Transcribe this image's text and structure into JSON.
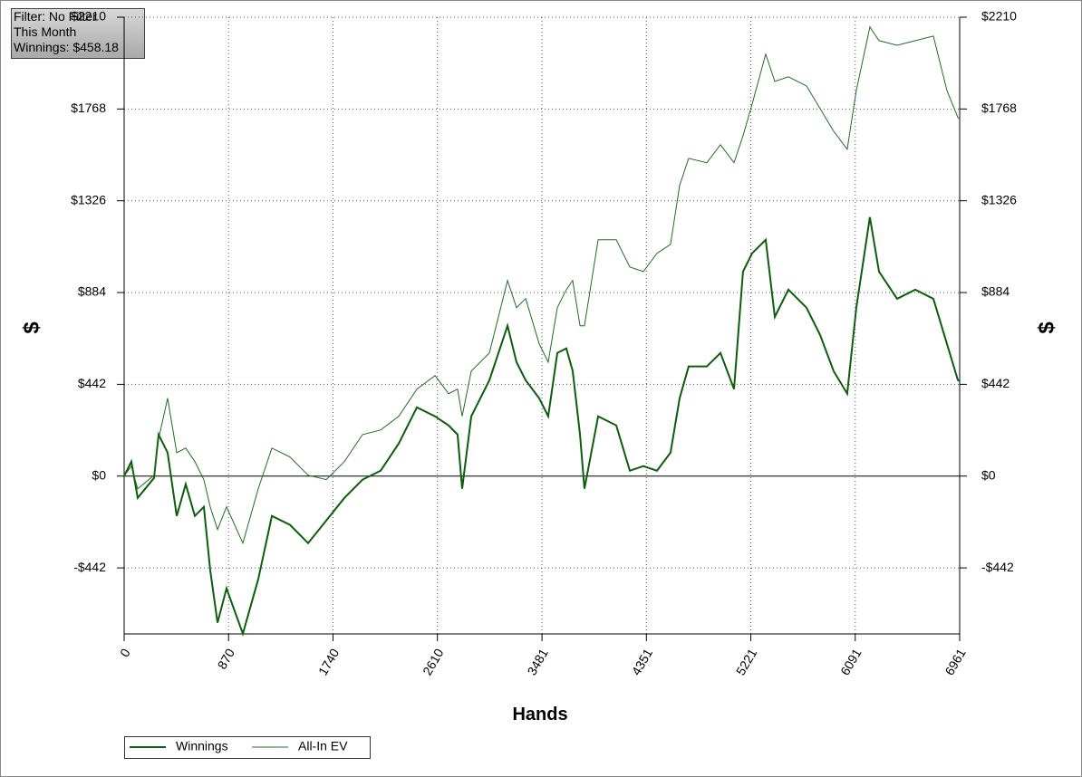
{
  "chart_data": {
    "type": "line",
    "info": [
      "Filter: No Filter",
      "This Month",
      "Winnings: $458.18"
    ],
    "x_label": "Hands",
    "y_label": "$",
    "y2_label": "$",
    "x": [
      0,
      60,
      113,
      249,
      287,
      362,
      438,
      513,
      589,
      664,
      717,
      778,
      853,
      989,
      1117,
      1231,
      1382,
      1533,
      1684,
      1835,
      1986,
      2137,
      2288,
      2439,
      2590,
      2703,
      2778,
      2816,
      2892,
      3043,
      3194,
      3269,
      3345,
      3458,
      3533,
      3609,
      3684,
      3737,
      3798,
      3835,
      3949,
      4100,
      4213,
      4326,
      4439,
      4552,
      4628,
      4703,
      4854,
      4968,
      5081,
      5156,
      5232,
      5345,
      5421,
      5534,
      5685,
      5798,
      5911,
      6024,
      6100,
      6213,
      6289,
      6440,
      6591,
      6742,
      6855,
      6946,
      6961
    ],
    "series": [
      {
        "name": "Winnings",
        "color": "#0b5e0b",
        "values": [
          0,
          70,
          -105,
          -9,
          200,
          113,
          -192,
          -39,
          -192,
          -148,
          -453,
          -706,
          -541,
          -759,
          -497,
          -192,
          -235,
          -323,
          -214,
          -105,
          -17,
          26,
          157,
          331,
          288,
          244,
          200,
          -61,
          288,
          462,
          724,
          549,
          462,
          375,
          288,
          593,
          615,
          506,
          200,
          -61,
          288,
          244,
          26,
          48,
          26,
          113,
          375,
          528,
          528,
          593,
          419,
          985,
          1073,
          1138,
          767,
          898,
          811,
          680,
          506,
          397,
          811,
          1247,
          985,
          854,
          898,
          854,
          637,
          462,
          458.18
        ]
      },
      {
        "name": "All-In EV",
        "color": "#1f6e1f",
        "values": [
          0,
          48,
          -61,
          4,
          179,
          375,
          113,
          135,
          70,
          -17,
          -148,
          -257,
          -148,
          -323,
          -61,
          135,
          92,
          4,
          -17,
          70,
          200,
          222,
          288,
          419,
          484,
          397,
          419,
          288,
          506,
          593,
          942,
          811,
          855,
          637,
          549,
          811,
          898,
          942,
          724,
          724,
          1138,
          1138,
          1007,
          985,
          1073,
          1116,
          1400,
          1530,
          1509,
          1596,
          1509,
          1639,
          1792,
          2032,
          1901,
          1923,
          1879,
          1770,
          1661,
          1574,
          1857,
          2163,
          2097,
          2075,
          2097,
          2119,
          1857,
          1727,
          1720
        ]
      }
    ],
    "xlim": [
      0,
      6961
    ],
    "xticks": [
      0,
      870,
      1740,
      2610,
      3481,
      4351,
      5221,
      6091,
      6961
    ],
    "ylim": [
      -760,
      2210
    ],
    "yticks": [
      {
        "value": -442,
        "label": "-$442"
      },
      {
        "value": 0,
        "label": "$0"
      },
      {
        "value": 442,
        "label": "$442"
      },
      {
        "value": 884,
        "label": "$884"
      },
      {
        "value": 1326,
        "label": "$1326"
      },
      {
        "value": 1768,
        "label": "$1768"
      },
      {
        "value": 2210,
        "label": "$2210"
      }
    ],
    "grid": true
  }
}
